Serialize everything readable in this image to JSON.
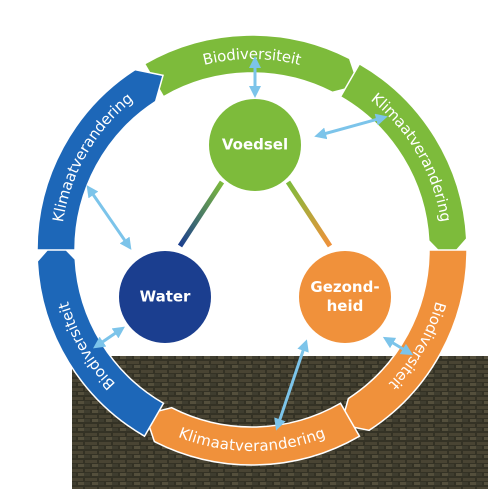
{
  "ring": [
    {
      "label": "Biodiversiteit"
    },
    {
      "label": "Klimaatverandering"
    },
    {
      "label": "Biodiversiteit"
    },
    {
      "label": "Klimaatverandering"
    },
    {
      "label": "Biodiversiteit"
    },
    {
      "label": "Klimaatverandering"
    }
  ],
  "nodes": [
    {
      "lines": [
        "Voedsel"
      ]
    },
    {
      "lines": [
        "Water"
      ]
    },
    {
      "lines": [
        "Gezond-",
        "heid"
      ]
    }
  ]
}
